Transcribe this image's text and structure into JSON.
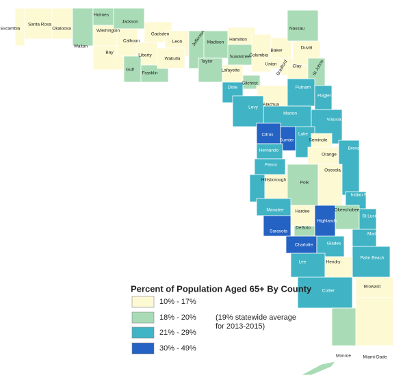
{
  "map": {
    "legend": {
      "title": "Percent of Population Aged 65+ By County",
      "classes": [
        {
          "label": "10% - 17%",
          "color": "#fdf9d3"
        },
        {
          "label": "18% - 20%",
          "color": "#a9dcb6"
        },
        {
          "label": "21% - 29%",
          "color": "#40b4c5"
        },
        {
          "label": "30% - 49%",
          "color": "#2462c3"
        }
      ],
      "note": [
        "(19% statewide average",
        "for 2013-2015)"
      ]
    },
    "counties": [
      {
        "name": "Escambia",
        "class": 0
      },
      {
        "name": "Santa Rosa",
        "class": 0
      },
      {
        "name": "Okaloosa",
        "class": 0
      },
      {
        "name": "Walton",
        "class": 1
      },
      {
        "name": "Holmes",
        "class": 1
      },
      {
        "name": "Washington",
        "class": 0
      },
      {
        "name": "Jackson",
        "class": 1
      },
      {
        "name": "Bay",
        "class": 0
      },
      {
        "name": "Calhoun",
        "class": 0
      },
      {
        "name": "Gadsden",
        "class": 0
      },
      {
        "name": "Liberty",
        "class": 0
      },
      {
        "name": "Leon",
        "class": 0
      },
      {
        "name": "Gulf",
        "class": 1
      },
      {
        "name": "Franklin",
        "class": 1
      },
      {
        "name": "Wakulla",
        "class": 0
      },
      {
        "name": "Jefferson",
        "class": 1
      },
      {
        "name": "Madison",
        "class": 1
      },
      {
        "name": "Taylor",
        "class": 1
      },
      {
        "name": "Hamilton",
        "class": 0
      },
      {
        "name": "Suwannee",
        "class": 1
      },
      {
        "name": "Lafayette",
        "class": 0
      },
      {
        "name": "Columbia",
        "class": 0
      },
      {
        "name": "Baker",
        "class": 0
      },
      {
        "name": "Union",
        "class": 0
      },
      {
        "name": "Bradford",
        "class": 0
      },
      {
        "name": "Nassau",
        "class": 1
      },
      {
        "name": "Duval",
        "class": 0
      },
      {
        "name": "Clay",
        "class": 0
      },
      {
        "name": "St Johns",
        "class": 1
      },
      {
        "name": "Gilchrist",
        "class": 1
      },
      {
        "name": "Alachua",
        "class": 0
      },
      {
        "name": "Dixie",
        "class": 2
      },
      {
        "name": "Levy",
        "class": 2
      },
      {
        "name": "Putnam",
        "class": 2
      },
      {
        "name": "Flagler",
        "class": 2
      },
      {
        "name": "Marion",
        "class": 2
      },
      {
        "name": "Volusia",
        "class": 2
      },
      {
        "name": "Citrus",
        "class": 3
      },
      {
        "name": "Sumter",
        "class": 3
      },
      {
        "name": "Lake",
        "class": 2
      },
      {
        "name": "Seminole",
        "class": 0
      },
      {
        "name": "Hernando",
        "class": 2
      },
      {
        "name": "Orange",
        "class": 0
      },
      {
        "name": "Brevard",
        "class": 2
      },
      {
        "name": "Pasco",
        "class": 2
      },
      {
        "name": "Pinellas",
        "class": 2
      },
      {
        "name": "Hillsborough",
        "class": 0
      },
      {
        "name": "Polk",
        "class": 1
      },
      {
        "name": "Osceola",
        "class": 0
      },
      {
        "name": "Indian River",
        "class": 2
      },
      {
        "name": "Manatee",
        "class": 2
      },
      {
        "name": "Hardee",
        "class": 0
      },
      {
        "name": "Okeechobee",
        "class": 1
      },
      {
        "name": "Highlands",
        "class": 3
      },
      {
        "name": "St Lucie",
        "class": 2
      },
      {
        "name": "Sarasota",
        "class": 3
      },
      {
        "name": "DeSoto",
        "class": 1
      },
      {
        "name": "Martin",
        "class": 2
      },
      {
        "name": "Charlotte",
        "class": 3
      },
      {
        "name": "Glades",
        "class": 2
      },
      {
        "name": "Palm Beach",
        "class": 2
      },
      {
        "name": "Lee",
        "class": 2
      },
      {
        "name": "Hendry",
        "class": 0
      },
      {
        "name": "Broward",
        "class": 0
      },
      {
        "name": "Collier",
        "class": 2
      },
      {
        "name": "Monroe",
        "class": 1
      },
      {
        "name": "Miami-Dade",
        "class": 0
      }
    ]
  }
}
